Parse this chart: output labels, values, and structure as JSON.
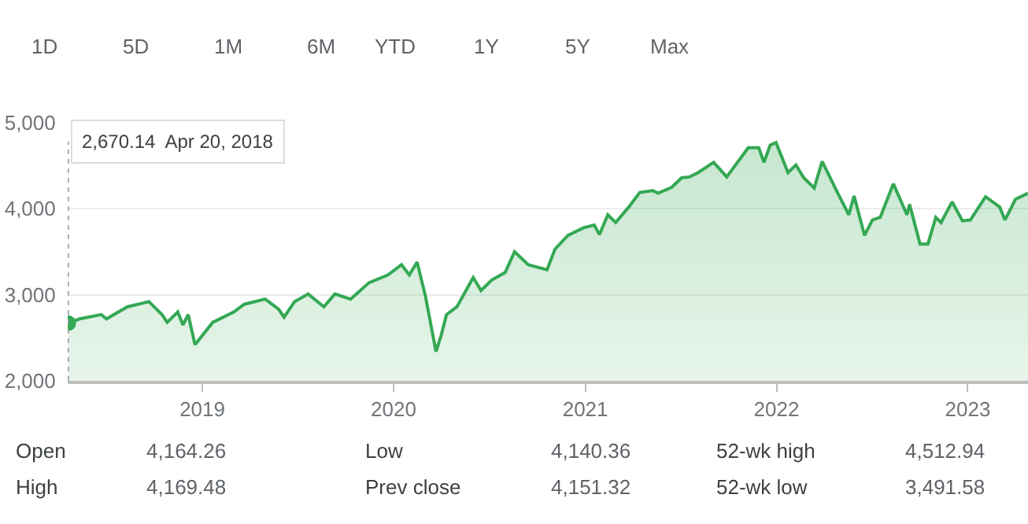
{
  "chart_data": {
    "type": "area",
    "x": [
      "2018-04-20",
      "2018-05-12",
      "2018-06-22",
      "2018-07-02",
      "2018-08-11",
      "2018-09-21",
      "2018-10-16",
      "2018-10-26",
      "2018-11-15",
      "2018-11-25",
      "2018-12-05",
      "2018-12-18",
      "2019-01-21",
      "2019-03-02",
      "2019-03-22",
      "2019-05-01",
      "2019-05-27",
      "2019-06-06",
      "2019-06-26",
      "2019-07-22",
      "2019-08-21",
      "2019-09-11",
      "2019-10-11",
      "2019-11-15",
      "2019-12-21",
      "2020-01-16",
      "2020-01-31",
      "2020-02-15",
      "2020-03-02",
      "2020-03-22",
      "2020-04-01",
      "2020-04-11",
      "2020-05-01",
      "2020-06-01",
      "2020-06-16",
      "2020-07-06",
      "2020-08-01",
      "2020-08-19",
      "2020-09-14",
      "2020-10-20",
      "2020-11-04",
      "2020-11-29",
      "2020-12-29",
      "2021-01-18",
      "2021-01-28",
      "2021-02-13",
      "2021-02-28",
      "2021-03-25",
      "2021-04-15",
      "2021-05-10",
      "2021-05-20",
      "2021-06-15",
      "2021-07-04",
      "2021-07-19",
      "2021-08-04",
      "2021-09-03",
      "2021-09-28",
      "2021-11-08",
      "2021-11-28",
      "2021-12-08",
      "2021-12-20",
      "2021-12-31",
      "2022-01-23",
      "2022-02-07",
      "2022-02-22",
      "2022-03-14",
      "2022-03-29",
      "2022-04-28",
      "2022-05-19",
      "2022-05-29",
      "2022-06-18",
      "2022-07-03",
      "2022-07-18",
      "2022-08-12",
      "2022-09-07",
      "2022-09-12",
      "2022-10-02",
      "2022-10-17",
      "2022-11-01",
      "2022-11-11",
      "2022-12-02",
      "2022-12-22",
      "2023-01-06",
      "2023-02-04",
      "2023-03-03",
      "2023-03-13",
      "2023-04-02",
      "2023-04-26"
    ],
    "series": [
      {
        "color": "#34a853",
        "values": [
          2670,
          2720,
          2770,
          2720,
          2860,
          2920,
          2770,
          2680,
          2800,
          2650,
          2770,
          2420,
          2680,
          2800,
          2890,
          2950,
          2830,
          2740,
          2920,
          3010,
          2860,
          3010,
          2950,
          3140,
          3230,
          3350,
          3230,
          3380,
          2980,
          2340,
          2530,
          2770,
          2860,
          3200,
          3050,
          3170,
          3260,
          3500,
          3350,
          3290,
          3530,
          3690,
          3780,
          3810,
          3700,
          3930,
          3840,
          4020,
          4190,
          4210,
          4180,
          4250,
          4360,
          4370,
          4420,
          4540,
          4370,
          4710,
          4710,
          4540,
          4740,
          4770,
          4420,
          4510,
          4360,
          4240,
          4550,
          4180,
          3930,
          4150,
          3690,
          3870,
          3900,
          4290,
          3930,
          4050,
          3590,
          3590,
          3900,
          3840,
          4080,
          3860,
          3870,
          4140,
          4020,
          3870,
          4110,
          4180
        ]
      },
      {
        "type": "scatter",
        "marker": "circle",
        "color": "#34a853",
        "x": [
          "2018-04-20"
        ],
        "values": [
          2670
        ]
      }
    ],
    "xlim": [
      "2018-04-19",
      "2023-04-26"
    ],
    "xticks": [
      {
        "value": "2019-01-01",
        "label": "2019"
      },
      {
        "value": "2020-01-01",
        "label": "2020"
      },
      {
        "value": "2021-01-01",
        "label": "2021"
      },
      {
        "value": "2022-01-01",
        "label": "2022"
      },
      {
        "value": "2023-01-01",
        "label": "2023"
      }
    ],
    "ylim": [
      2000,
      5000
    ],
    "yticks": [
      {
        "value": 2000,
        "label": "2,000"
      },
      {
        "value": 3000,
        "label": "3,000"
      },
      {
        "value": 4000,
        "label": "4,000"
      },
      {
        "value": 5000,
        "label": "5,000"
      }
    ],
    "grid": "y",
    "legend": false,
    "marker": "none",
    "line_style": "solid",
    "ref_lines": [
      {
        "axis": "x",
        "value": "2018-04-20",
        "color": "#9e9e9e",
        "line_style": "dotted"
      }
    ],
    "annotations": [
      "1D",
      "5D",
      "1M",
      "6M",
      "YTD",
      "1Y",
      "5Y",
      "Max",
      "2,670.14  Apr 20, 2018",
      "Open",
      "4,164.26",
      "Low",
      "4,140.36",
      "52-wk high",
      "4,512.94",
      "High",
      "4,169.48",
      "Prev close",
      "4,151.32",
      "52-wk low",
      "3,491.58"
    ]
  }
}
